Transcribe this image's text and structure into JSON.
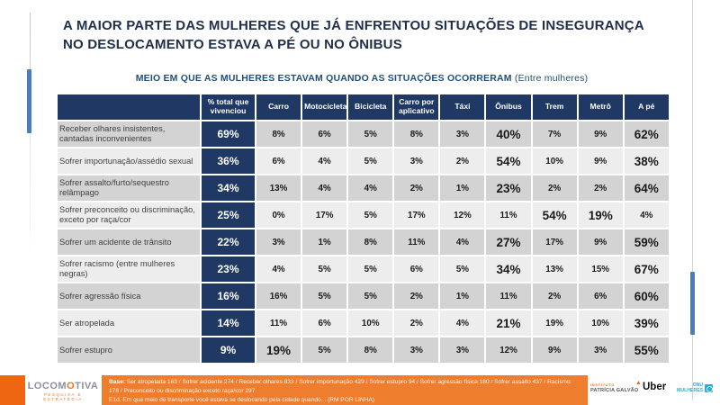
{
  "slide": {
    "title": "A MAIOR PARTE DAS MULHERES QUE JÁ ENFRENTOU SITUAÇÕES DE INSEGURANÇA NO DESLOCAMENTO ESTAVA A PÉ OU NO ÔNIBUS",
    "subtitle": "MEIO EM QUE AS MULHERES ESTAVAM QUANDO AS SITUAÇÕES OCORRERAM",
    "subtitle_note": "(Entre mulheres)"
  },
  "chart_data": {
    "type": "table",
    "title": "MEIO EM QUE AS MULHERES ESTAVAM QUANDO AS SITUAÇÕES OCORRERAM (Entre mulheres)",
    "columns": [
      "% total que vivenciou",
      "Carro",
      "Motocicleta",
      "Bicicleta",
      "Carro por aplicativo",
      "Táxi",
      "Ônibus",
      "Trem",
      "Metrô",
      "A pé"
    ],
    "rows": [
      {
        "label": "Receber olhares insistentes, cantadas inconvenientes",
        "total": "69%",
        "values": [
          "8%",
          "6%",
          "5%",
          "8%",
          "3%",
          "40%",
          "7%",
          "9%",
          "62%"
        ],
        "emphasis": [
          5,
          8
        ]
      },
      {
        "label": "Sofrer importunação/assédio sexual",
        "total": "36%",
        "values": [
          "6%",
          "4%",
          "5%",
          "3%",
          "2%",
          "54%",
          "10%",
          "9%",
          "38%"
        ],
        "emphasis": [
          5,
          8
        ]
      },
      {
        "label": "Sofrer assalto/furto/sequestro relâmpago",
        "total": "34%",
        "values": [
          "13%",
          "4%",
          "4%",
          "2%",
          "1%",
          "23%",
          "2%",
          "2%",
          "64%"
        ],
        "emphasis": [
          5,
          8
        ]
      },
      {
        "label": "Sofrer preconceito ou discriminação, exceto por raça/cor",
        "total": "25%",
        "values": [
          "0%",
          "17%",
          "5%",
          "17%",
          "12%",
          "11%",
          "54%",
          "19%",
          "4%"
        ],
        "emphasis": [
          6,
          7
        ]
      },
      {
        "label": "Sofrer um acidente de trânsito",
        "total": "22%",
        "values": [
          "3%",
          "1%",
          "8%",
          "11%",
          "4%",
          "27%",
          "17%",
          "9%",
          "59%"
        ],
        "emphasis": [
          5,
          8
        ]
      },
      {
        "label": "Sofrer racismo (entre mulheres negras)",
        "total": "23%",
        "values": [
          "4%",
          "5%",
          "5%",
          "6%",
          "5%",
          "34%",
          "13%",
          "15%",
          "67%"
        ],
        "emphasis": [
          5,
          8
        ]
      },
      {
        "label": "Sofrer agressão física",
        "total": "16%",
        "values": [
          "16%",
          "5%",
          "5%",
          "2%",
          "1%",
          "11%",
          "2%",
          "6%",
          "60%"
        ],
        "emphasis": [
          8
        ]
      },
      {
        "label": "Ser atropelada",
        "total": "14%",
        "values": [
          "11%",
          "6%",
          "10%",
          "2%",
          "4%",
          "21%",
          "19%",
          "10%",
          "39%"
        ],
        "emphasis": [
          5,
          8
        ]
      },
      {
        "label": "Sofrer estupro",
        "total": "9%",
        "values": [
          "19%",
          "5%",
          "8%",
          "3%",
          "3%",
          "12%",
          "9%",
          "3%",
          "55%"
        ],
        "emphasis": [
          0,
          8
        ]
      }
    ]
  },
  "footer": {
    "base_label": "Base:",
    "base_text": " Ser atropelada 163 / Sofrer acidente 274 / Receber olhares 833 / Sofrer importunação 429 / Sofrer estupro 94 / Sofrer agressão física 180 / Sofrer assalto 437 / Racismo 178 / Preconceito ou discriminação exceto raça/cor 297",
    "question": "E1d. Em que meio de transporte você estava se deslocando pela cidade quando... (RM POR LINHA)",
    "logos": {
      "locomotiva": {
        "part1": "LOCOM",
        "part2": "O",
        "part3": "TIVA",
        "tagline": "PESQUISA E ESTRATÉGIA"
      },
      "patricia_galvao": {
        "line1": "INSTITUTO",
        "line2": "PATRÍCIA GALVÃO"
      },
      "uber": {
        "label": "Uber"
      },
      "onu_mulheres": {
        "line1": "ONU",
        "line2": "MULHERES"
      }
    }
  },
  "colors": {
    "header_navy": "#1f3864",
    "subtitle_blue": "#1f4e79",
    "accent_blue": "#4a7ebb",
    "row_gray": "#d3d3d3",
    "row_light": "#ededed",
    "footer_orange": "#ef7d2e",
    "square_orange": "#ee6611",
    "onu_blue": "#29abe2"
  }
}
